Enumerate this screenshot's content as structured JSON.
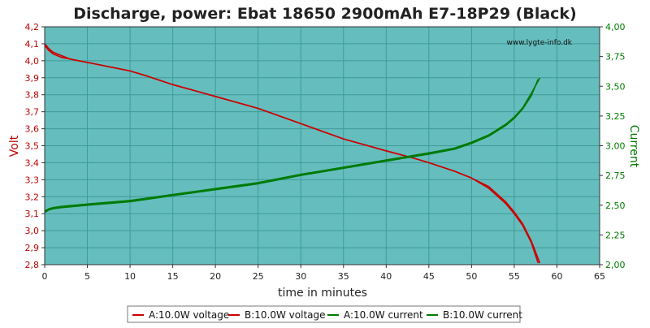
{
  "chart_data": {
    "type": "line",
    "title": "Discharge, power: Ebat 18650 2900mAh E7-18P29 (Black)",
    "watermark": "www.lygte-info.dk",
    "xlabel": "time in minutes",
    "ylabel_left": "Volt",
    "ylabel_right": "Current",
    "xlim": [
      0,
      65
    ],
    "ylim_left": [
      2.8,
      4.2
    ],
    "ylim_right": [
      2.0,
      4.0
    ],
    "x_ticks": [
      "0",
      "5",
      "10",
      "15",
      "20",
      "25",
      "30",
      "35",
      "40",
      "45",
      "50",
      "55",
      "60",
      "65"
    ],
    "left_ticks": [
      "2,8",
      "2,9",
      "3,0",
      "3,1",
      "3,2",
      "3,3",
      "3,4",
      "3,5",
      "3,6",
      "3,7",
      "3,8",
      "3,9",
      "4,0",
      "4,1",
      "4,2"
    ],
    "right_ticks": [
      "2,00",
      "2,25",
      "2,50",
      "2,75",
      "3,00",
      "3,25",
      "3,50",
      "3,75",
      "4,00"
    ],
    "grid": true,
    "legend_position": "bottom",
    "colors": {
      "plot_background": "#66bdbd",
      "voltage": "#cc0000",
      "current": "#007a00",
      "left_axis": "#c00000",
      "right_axis": "#007a00"
    },
    "series": [
      {
        "name": "A:10.0W voltage",
        "axis": "left",
        "color": "#cc0000",
        "x": [
          0,
          0.5,
          1,
          2,
          3,
          5,
          8,
          10,
          12,
          15,
          20,
          25,
          30,
          35,
          40,
          43,
          45,
          48,
          50,
          52,
          54,
          55,
          56,
          57,
          57.8
        ],
        "y": [
          4.1,
          4.07,
          4.05,
          4.03,
          4.01,
          3.99,
          3.96,
          3.94,
          3.91,
          3.86,
          3.79,
          3.72,
          3.63,
          3.54,
          3.47,
          3.43,
          3.4,
          3.35,
          3.31,
          3.25,
          3.16,
          3.1,
          3.03,
          2.93,
          2.81
        ]
      },
      {
        "name": "B:10.0W voltage",
        "axis": "left",
        "color": "#cc0000",
        "x": [
          0,
          0.5,
          1,
          2,
          3,
          5,
          8,
          10,
          12,
          15,
          20,
          25,
          30,
          35,
          40,
          43,
          45,
          48,
          50,
          52,
          54,
          55,
          56,
          57,
          58
        ],
        "y": [
          4.09,
          4.06,
          4.04,
          4.02,
          4.01,
          3.99,
          3.96,
          3.94,
          3.91,
          3.86,
          3.79,
          3.72,
          3.63,
          3.54,
          3.47,
          3.43,
          3.4,
          3.35,
          3.31,
          3.26,
          3.17,
          3.11,
          3.04,
          2.94,
          2.81
        ]
      },
      {
        "name": "A:10.0W current",
        "axis": "right",
        "color": "#007a00",
        "x": [
          0,
          0.5,
          1,
          2,
          5,
          10,
          15,
          20,
          25,
          30,
          35,
          40,
          45,
          48,
          50,
          52,
          54,
          55,
          56,
          57,
          57.8
        ],
        "y": [
          2.44,
          2.46,
          2.47,
          2.48,
          2.5,
          2.53,
          2.58,
          2.63,
          2.68,
          2.75,
          2.81,
          2.87,
          2.93,
          2.97,
          3.02,
          3.08,
          3.17,
          3.23,
          3.31,
          3.42,
          3.56
        ]
      },
      {
        "name": "B:10.0W current",
        "axis": "right",
        "color": "#007a00",
        "x": [
          0,
          0.5,
          1,
          2,
          5,
          10,
          15,
          20,
          25,
          30,
          35,
          40,
          45,
          48,
          50,
          52,
          54,
          55,
          56,
          57,
          58
        ],
        "y": [
          2.45,
          2.47,
          2.48,
          2.49,
          2.51,
          2.54,
          2.59,
          2.64,
          2.69,
          2.76,
          2.82,
          2.88,
          2.94,
          2.98,
          3.03,
          3.09,
          3.18,
          3.24,
          3.32,
          3.44,
          3.57
        ]
      }
    ]
  }
}
